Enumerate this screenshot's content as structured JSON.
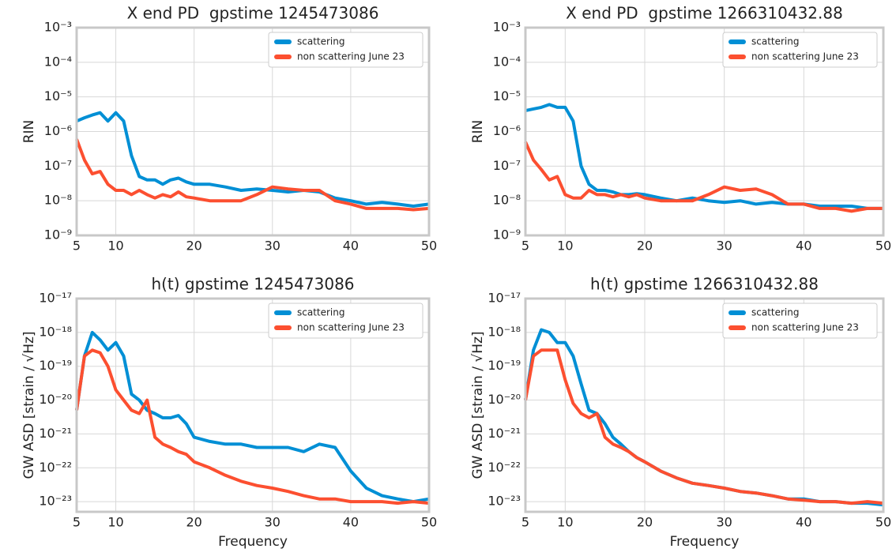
{
  "chart_data": [
    {
      "type": "line",
      "title": "X end PD  gpstime 1245473086",
      "ylabel": "RIN",
      "log_y": true,
      "grid": true,
      "legend": "upper right",
      "xlim": [
        5,
        50
      ],
      "xticks": [
        5,
        10,
        20,
        30,
        40,
        50
      ],
      "ylim": [
        1e-09,
        0.001
      ],
      "yticks": [
        {
          "value": 1e-09,
          "label": "10⁻⁹"
        },
        {
          "value": 1e-08,
          "label": "10⁻⁸"
        },
        {
          "value": 1e-07,
          "label": "10⁻⁷"
        },
        {
          "value": 1e-06,
          "label": "10⁻⁶"
        },
        {
          "value": 1e-05,
          "label": "10⁻⁵"
        },
        {
          "value": 0.0001,
          "label": "10⁻⁴"
        },
        {
          "value": 0.001,
          "label": "10⁻³"
        }
      ],
      "x": [
        5,
        6,
        7,
        8,
        9,
        10,
        11,
        12,
        13,
        14,
        15,
        16,
        17,
        18,
        19,
        20,
        22,
        24,
        26,
        28,
        30,
        32,
        34,
        36,
        38,
        40,
        42,
        44,
        46,
        48,
        50
      ],
      "series": [
        {
          "name": "scattering",
          "color": "#008fd5",
          "values": [
            2e-06,
            2.5e-06,
            3e-06,
            3.5e-06,
            2e-06,
            3.5e-06,
            2e-06,
            2e-07,
            5e-08,
            4e-08,
            4e-08,
            3e-08,
            4e-08,
            4.5e-08,
            3.5e-08,
            3e-08,
            3e-08,
            2.5e-08,
            2e-08,
            2.2e-08,
            2e-08,
            1.8e-08,
            2e-08,
            1.8e-08,
            1.2e-08,
            1e-08,
            8e-09,
            9e-09,
            8e-09,
            7e-09,
            8e-09
          ]
        },
        {
          "name": "non scattering June 23",
          "color": "#fc4f30",
          "values": [
            6e-07,
            1.5e-07,
            6e-08,
            7e-08,
            3e-08,
            2e-08,
            2e-08,
            1.5e-08,
            2e-08,
            1.5e-08,
            1.2e-08,
            1.5e-08,
            1.3e-08,
            1.8e-08,
            1.3e-08,
            1.2e-08,
            1e-08,
            1e-08,
            1e-08,
            1.5e-08,
            2.5e-08,
            2.2e-08,
            2e-08,
            2e-08,
            1e-08,
            8e-09,
            6e-09,
            6e-09,
            6e-09,
            5.5e-09,
            6e-09
          ]
        }
      ]
    },
    {
      "type": "line",
      "title": "X end PD  gpstime 1266310432.88",
      "ylabel": "RIN",
      "log_y": true,
      "grid": true,
      "legend": "upper right",
      "xlim": [
        5,
        50
      ],
      "xticks": [
        5,
        10,
        20,
        30,
        40,
        50
      ],
      "ylim": [
        1e-09,
        0.001
      ],
      "yticks": [
        {
          "value": 1e-09,
          "label": "10⁻⁹"
        },
        {
          "value": 1e-08,
          "label": "10⁻⁸"
        },
        {
          "value": 1e-07,
          "label": "10⁻⁷"
        },
        {
          "value": 1e-06,
          "label": "10⁻⁶"
        },
        {
          "value": 1e-05,
          "label": "10⁻⁵"
        },
        {
          "value": 0.0001,
          "label": "10⁻⁴"
        },
        {
          "value": 0.001,
          "label": "10⁻³"
        }
      ],
      "x": [
        5,
        6,
        7,
        8,
        9,
        10,
        11,
        12,
        13,
        14,
        15,
        16,
        17,
        18,
        19,
        20,
        22,
        24,
        26,
        28,
        30,
        32,
        34,
        36,
        38,
        40,
        42,
        44,
        46,
        48,
        50
      ],
      "series": [
        {
          "name": "scattering",
          "color": "#008fd5",
          "values": [
            4e-06,
            4.5e-06,
            5e-06,
            6e-06,
            5e-06,
            5e-06,
            2e-06,
            1e-07,
            3e-08,
            2e-08,
            2e-08,
            1.8e-08,
            1.5e-08,
            1.5e-08,
            1.6e-08,
            1.5e-08,
            1.2e-08,
            1e-08,
            1.2e-08,
            1e-08,
            9e-09,
            1e-08,
            8e-09,
            9e-09,
            8e-09,
            8e-09,
            7e-09,
            7e-09,
            7e-09,
            6e-09,
            6e-09
          ]
        },
        {
          "name": "non scattering June 23",
          "color": "#fc4f30",
          "values": [
            5e-07,
            1.5e-07,
            8e-08,
            4e-08,
            5e-08,
            1.5e-08,
            1.2e-08,
            1.2e-08,
            2e-08,
            1.5e-08,
            1.5e-08,
            1.3e-08,
            1.5e-08,
            1.3e-08,
            1.5e-08,
            1.2e-08,
            1e-08,
            1e-08,
            1e-08,
            1.5e-08,
            2.5e-08,
            2e-08,
            2.2e-08,
            1.5e-08,
            8e-09,
            8e-09,
            6e-09,
            6e-09,
            5e-09,
            6e-09,
            6e-09
          ]
        }
      ]
    },
    {
      "type": "line",
      "title": "h(t) gpstime 1245473086",
      "ylabel": "GW ASD [strain / √Hz]",
      "xlabel": "Frequency",
      "log_y": true,
      "grid": true,
      "legend": "upper right",
      "xlim": [
        5,
        50
      ],
      "xticks": [
        5,
        10,
        20,
        30,
        40,
        50
      ],
      "ylim": [
        5e-24,
        1e-17
      ],
      "yticks": [
        {
          "value": 1e-23,
          "label": "10⁻²³"
        },
        {
          "value": 1e-22,
          "label": "10⁻²²"
        },
        {
          "value": 1e-21,
          "label": "10⁻²¹"
        },
        {
          "value": 1e-20,
          "label": "10⁻²⁰"
        },
        {
          "value": 1e-19,
          "label": "10⁻¹⁹"
        },
        {
          "value": 1e-18,
          "label": "10⁻¹⁸"
        },
        {
          "value": 1e-17,
          "label": "10⁻¹⁷"
        }
      ],
      "x": [
        5,
        6,
        7,
        8,
        9,
        10,
        11,
        12,
        13,
        14,
        15,
        16,
        17,
        18,
        19,
        20,
        22,
        24,
        26,
        28,
        30,
        32,
        34,
        36,
        38,
        40,
        42,
        44,
        46,
        48,
        50
      ],
      "series": [
        {
          "name": "scattering",
          "color": "#008fd5",
          "values": [
            5e-21,
            2e-19,
            1e-18,
            6e-19,
            3e-19,
            5e-19,
            2e-19,
            1.5e-20,
            1e-20,
            5e-21,
            4e-21,
            3e-21,
            3e-21,
            3.5e-21,
            2e-21,
            8e-22,
            6e-22,
            5e-22,
            5e-22,
            4e-22,
            4e-22,
            4e-22,
            3e-22,
            5e-22,
            4e-22,
            8e-23,
            2.5e-23,
            1.5e-23,
            1.2e-23,
            1e-23,
            1.2e-23
          ]
        },
        {
          "name": "non scattering June 23",
          "color": "#fc4f30",
          "values": [
            5e-21,
            2e-19,
            3e-19,
            2.5e-19,
            1e-19,
            2e-20,
            1e-20,
            5e-21,
            4e-21,
            1e-20,
            8e-22,
            5e-22,
            4e-22,
            3e-22,
            2.5e-22,
            1.5e-22,
            1e-22,
            6e-23,
            4e-23,
            3e-23,
            2.5e-23,
            2e-23,
            1.5e-23,
            1.2e-23,
            1.2e-23,
            1e-23,
            1e-23,
            1e-23,
            9e-24,
            1e-23,
            9e-24
          ]
        }
      ]
    },
    {
      "type": "line",
      "title": "h(t) gpstime 1266310432.88",
      "ylabel": "GW ASD [strain / √Hz]",
      "xlabel": "Frequency",
      "log_y": true,
      "grid": true,
      "legend": "upper right",
      "xlim": [
        5,
        50
      ],
      "xticks": [
        5,
        10,
        20,
        30,
        40,
        50
      ],
      "ylim": [
        5e-24,
        1e-17
      ],
      "yticks": [
        {
          "value": 1e-23,
          "label": "10⁻²³"
        },
        {
          "value": 1e-22,
          "label": "10⁻²²"
        },
        {
          "value": 1e-21,
          "label": "10⁻²¹"
        },
        {
          "value": 1e-20,
          "label": "10⁻²⁰"
        },
        {
          "value": 1e-19,
          "label": "10⁻¹⁹"
        },
        {
          "value": 1e-18,
          "label": "10⁻¹⁸"
        },
        {
          "value": 1e-17,
          "label": "10⁻¹⁷"
        }
      ],
      "x": [
        5,
        6,
        7,
        8,
        9,
        10,
        11,
        12,
        13,
        14,
        15,
        16,
        17,
        18,
        19,
        20,
        22,
        24,
        26,
        28,
        30,
        32,
        34,
        36,
        38,
        40,
        42,
        44,
        46,
        48,
        50
      ],
      "series": [
        {
          "name": "scattering",
          "color": "#008fd5",
          "values": [
            1e-20,
            3e-19,
            1.2e-18,
            1e-18,
            5e-19,
            5e-19,
            2e-19,
            3e-20,
            5e-21,
            4e-21,
            2e-21,
            8e-22,
            5e-22,
            3e-22,
            2e-22,
            1.5e-22,
            8e-23,
            5e-23,
            3.5e-23,
            3e-23,
            2.5e-23,
            2e-23,
            1.8e-23,
            1.5e-23,
            1.2e-23,
            1.2e-23,
            1e-23,
            1e-23,
            9e-24,
            9e-24,
            8e-24
          ]
        },
        {
          "name": "non scattering June 23",
          "color": "#fc4f30",
          "values": [
            1e-20,
            2e-19,
            3e-19,
            3e-19,
            3e-19,
            4e-20,
            8e-21,
            4e-21,
            3e-21,
            4e-21,
            8e-22,
            5e-22,
            4e-22,
            3e-22,
            2e-22,
            1.5e-22,
            8e-23,
            5e-23,
            3.5e-23,
            3e-23,
            2.5e-23,
            2e-23,
            1.8e-23,
            1.5e-23,
            1.2e-23,
            1.1e-23,
            1e-23,
            1e-23,
            9e-24,
            1e-23,
            9e-24
          ]
        }
      ]
    }
  ]
}
